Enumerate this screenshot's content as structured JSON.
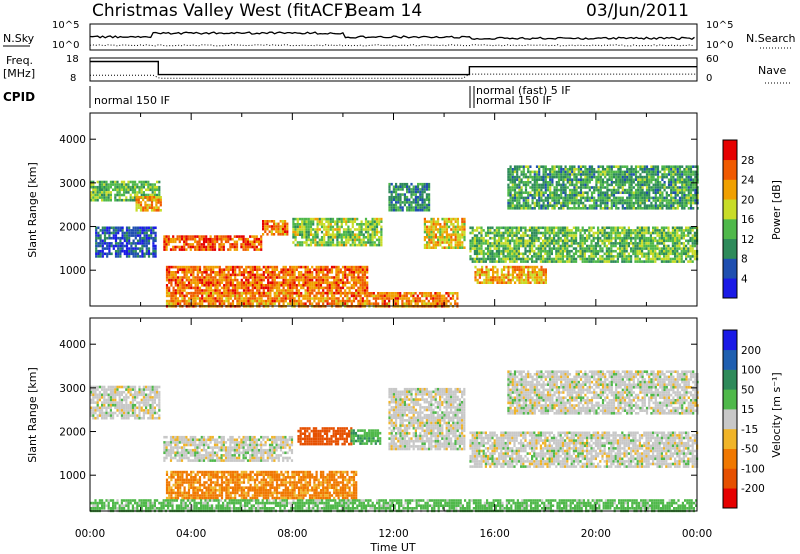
{
  "header": {
    "station": "Christmas Valley West (fitACF)",
    "beam": "Beam 14",
    "date": "03/Jun/2011"
  },
  "summary_panels": {
    "nsky_label": "N.Sky",
    "nsearch_label": "N.Search",
    "freq_label_line1": "Freq.",
    "freq_label_line2": "[MHz]",
    "nave_label": "Nave",
    "cpid_label": "CPID",
    "nsky_ticks": [
      "10^5",
      "10^0"
    ],
    "nsearch_ticks": [
      "10^5",
      "10^0"
    ],
    "freq_ticks": [
      "18",
      "8"
    ],
    "nave_ticks": [
      "60",
      "0"
    ],
    "cpid_segments": [
      {
        "from_hour": 0.0,
        "label": "normal 150 IF"
      },
      {
        "from_hour": 15.0,
        "label": "normal (fast) 5 IF"
      },
      {
        "from_hour": 15.0,
        "label": "normal 150 IF"
      }
    ],
    "frequency_mhz": [
      {
        "from_hour": 0.0,
        "to_hour": 2.7,
        "value": 16.5
      },
      {
        "from_hour": 2.7,
        "to_hour": 15.0,
        "value": 10.8
      },
      {
        "from_hour": 15.0,
        "to_hour": 24.0,
        "value": 14.2
      }
    ]
  },
  "axes": {
    "x_label": "Time UT",
    "x_ticks": [
      "00:00",
      "04:00",
      "08:00",
      "12:00",
      "16:00",
      "20:00",
      "00:00"
    ],
    "y_label": "Slant Range [km]",
    "y_ticks": [
      "1000",
      "2000",
      "3000",
      "4000"
    ]
  },
  "colorbars": {
    "power": {
      "label": "Power [dB]",
      "ticks": [
        "4",
        "8",
        "12",
        "16",
        "20",
        "24",
        "28"
      ],
      "colors": [
        "#1a1ae6",
        "#1f4fb0",
        "#2e8a5a",
        "#4fb84a",
        "#c8dc28",
        "#f0a000",
        "#f05a00",
        "#e60000"
      ]
    },
    "velocity": {
      "label": "Velocity [m s⁻¹]",
      "ticks": [
        "200",
        "100",
        "50",
        "15",
        "-15",
        "-50",
        "-100",
        "-200"
      ],
      "colors": [
        "#1a1ae6",
        "#1f5fb0",
        "#2e8a5a",
        "#4fb84a",
        "#c8c8c8",
        "#f0b428",
        "#f07800",
        "#e65000",
        "#e60000"
      ]
    }
  },
  "chart_data": [
    {
      "type": "heatmap",
      "title": "Power",
      "xlabel": "Time UT",
      "ylabel": "Slant Range [km]",
      "xlim": [
        0,
        24
      ],
      "ylim": [
        180,
        4600
      ],
      "colorbar_label": "Power [dB]",
      "regions": [
        {
          "t0": 0.0,
          "t1": 2.7,
          "r0": 2600,
          "r1": 3050,
          "power_db": 14
        },
        {
          "t0": 1.8,
          "t1": 2.8,
          "r0": 2350,
          "r1": 2700,
          "power_db": 22
        },
        {
          "t0": 0.2,
          "t1": 2.6,
          "r0": 1300,
          "r1": 2000,
          "power_db": 6
        },
        {
          "t0": 2.9,
          "t1": 6.8,
          "r0": 1450,
          "r1": 1800,
          "power_db": 26
        },
        {
          "t0": 6.8,
          "t1": 7.8,
          "r0": 1800,
          "r1": 2150,
          "power_db": 24
        },
        {
          "t0": 3.0,
          "t1": 11.0,
          "r0": 500,
          "r1": 1100,
          "power_db": 25
        },
        {
          "t0": 8.0,
          "t1": 11.5,
          "r0": 1600,
          "r1": 2200,
          "power_db": 16
        },
        {
          "t0": 11.8,
          "t1": 13.4,
          "r0": 2400,
          "r1": 3000,
          "power_db": 10
        },
        {
          "t0": 13.2,
          "t1": 14.8,
          "r0": 1500,
          "r1": 2200,
          "power_db": 20
        },
        {
          "t0": 15.0,
          "t1": 24.0,
          "r0": 1200,
          "r1": 2000,
          "power_db": 14
        },
        {
          "t0": 16.5,
          "t1": 24.0,
          "r0": 2400,
          "r1": 3400,
          "power_db": 12
        },
        {
          "t0": 3.0,
          "t1": 14.5,
          "r0": 200,
          "r1": 500,
          "power_db": 24
        },
        {
          "t0": 15.2,
          "t1": 18.0,
          "r0": 700,
          "r1": 1100,
          "power_db": 22
        }
      ]
    },
    {
      "type": "heatmap",
      "title": "Velocity",
      "xlabel": "Time UT",
      "ylabel": "Slant Range [km]",
      "xlim": [
        0,
        24
      ],
      "ylim": [
        180,
        4600
      ],
      "colorbar_label": "Velocity [m s⁻¹]",
      "regions": [
        {
          "t0": 0.0,
          "t1": 2.7,
          "r0": 2300,
          "r1": 3050,
          "velocity_ms": 0
        },
        {
          "t0": 2.9,
          "t1": 8.0,
          "r0": 1350,
          "r1": 1900,
          "velocity_ms": 0
        },
        {
          "t0": 3.0,
          "t1": 10.5,
          "r0": 500,
          "r1": 1100,
          "velocity_ms": -60
        },
        {
          "t0": 8.2,
          "t1": 10.3,
          "r0": 1700,
          "r1": 2100,
          "velocity_ms": -180
        },
        {
          "t0": 10.3,
          "t1": 11.5,
          "r0": 1750,
          "r1": 2050,
          "velocity_ms": 40
        },
        {
          "t0": 11.8,
          "t1": 14.8,
          "r0": 1600,
          "r1": 3000,
          "velocity_ms": 0
        },
        {
          "t0": 15.0,
          "t1": 24.0,
          "r0": 1200,
          "r1": 2000,
          "velocity_ms": 0
        },
        {
          "t0": 16.5,
          "t1": 24.0,
          "r0": 2400,
          "r1": 3400,
          "velocity_ms": 0
        },
        {
          "t0": 0.0,
          "t1": 24.0,
          "r0": 200,
          "r1": 450,
          "velocity_ms": 30
        }
      ]
    }
  ]
}
